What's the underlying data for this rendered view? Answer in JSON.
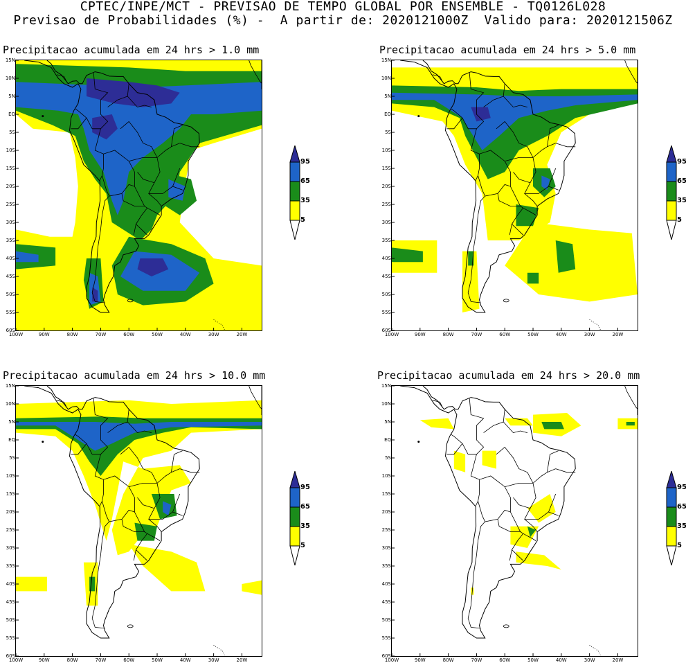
{
  "header": {
    "line1": "CPTEC/INPE/MCT - PREVISAO DE TEMPO GLOBAL POR ENSEMBLE - TQ0126L028",
    "line2": "Previsao de Probabilidades (%) -  A partir de: 2020121000Z  Valido para: 2020121506Z"
  },
  "panels": [
    {
      "id": "p1",
      "title": "Precipitacao acumulada em 24 hrs > 1.0 mm",
      "level": 1
    },
    {
      "id": "p2",
      "title": "Precipitacao acumulada em 24 hrs > 5.0 mm",
      "level": 2
    },
    {
      "id": "p3",
      "title": "Precipitacao acumulada em 24 hrs > 10.0 mm",
      "level": 3
    },
    {
      "id": "p4",
      "title": "Precipitacao acumulada em 24 hrs > 20.0 mm",
      "level": 4
    }
  ],
  "lat_labels": [
    "15N",
    "10N",
    "5N",
    "EQ",
    "5S",
    "10S",
    "15S",
    "20S",
    "25S",
    "30S",
    "35S",
    "40S",
    "45S",
    "50S",
    "55S",
    "60S"
  ],
  "lon_labels": [
    "100W",
    "90W",
    "80W",
    "70W",
    "60W",
    "50W",
    "40W",
    "30W",
    "20W"
  ],
  "colorbar": {
    "labels": [
      "95",
      "65",
      "35",
      "5"
    ],
    "colors": {
      "c5": "#ffff00",
      "c35": "#1a8c1a",
      "c65": "#1e64c8",
      "c95": "#2d2d96"
    }
  }
}
